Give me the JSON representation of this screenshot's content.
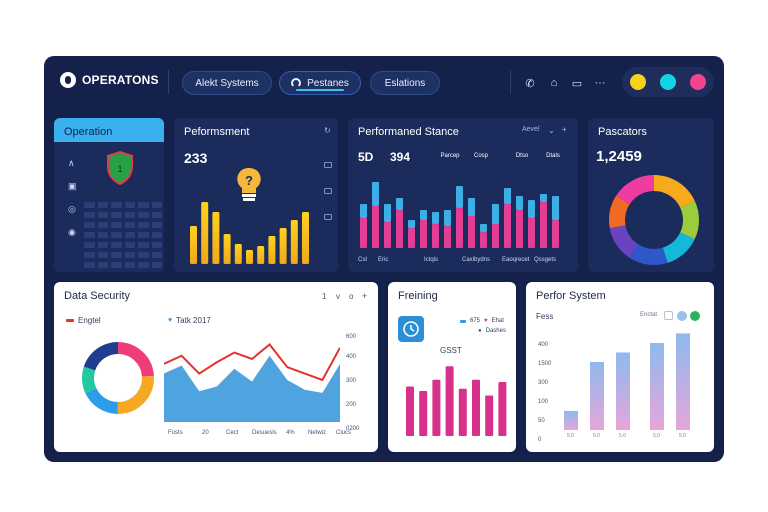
{
  "header": {
    "brand": "OPERATONS",
    "tabs": [
      {
        "label": "Alekt Systems"
      },
      {
        "label": "Pestanes"
      },
      {
        "label": "Eslations"
      }
    ],
    "toolbar_icons": [
      "phone-icon",
      "home-icon",
      "screen-icon",
      "more-icon"
    ],
    "status_dots": [
      {
        "icon": "warning-icon",
        "color": "#f6d21b"
      },
      {
        "icon": "cyan-dot-icon",
        "color": "#12d3e6"
      },
      {
        "icon": "alert-icon",
        "color": "#f2458f"
      }
    ]
  },
  "panels": {
    "operation": {
      "title": "Operation",
      "nav_icons": [
        "chevron-icon",
        "image-icon",
        "shield-icon",
        "globe-icon"
      ],
      "grid_rows": 7
    },
    "performance": {
      "title": "Peformsment",
      "value": "233"
    },
    "stance": {
      "title": "Performaned Stance",
      "filter": "Aevel",
      "value_a": "5D",
      "value_b": "394",
      "tags": [
        {
          "label": "Parcep",
          "color": "#f0553b"
        },
        {
          "label": "Cosp",
          "color": "#f0553b"
        },
        {
          "label": "Dtso",
          "color": "#1fa556"
        },
        {
          "label": "Dtals",
          "color": "#1fa556"
        }
      ],
      "x_labels": [
        "Cst",
        "Eric",
        "Ictqis",
        "Caxibydns",
        "Eaoqrecet",
        "Qssgets"
      ]
    },
    "pascators": {
      "title": "Pascators",
      "value": "1,2459"
    },
    "security": {
      "title": "Data Security",
      "controls": [
        "1",
        "v",
        "o",
        "+"
      ],
      "legend_a": "Engtel",
      "legend_b": "Tatk 2017",
      "y_labels": [
        "600",
        "400",
        "300",
        "200",
        "0200"
      ],
      "x_labels": [
        "Fusts",
        "20",
        "Cect",
        "Desuesls",
        "4%",
        "Netwiz",
        "Clucs"
      ]
    },
    "fretning": {
      "title": "Freining",
      "legend_a": "675",
      "legend_b": "Ehat",
      "legend_c": "Dashes",
      "value": "GSST"
    },
    "system": {
      "title": "Perfor System",
      "subtitle": "Fess",
      "filter": "Enctat",
      "y_labels": [
        "400",
        "1500",
        "300",
        "100",
        "50",
        "0"
      ]
    }
  },
  "chart_data": [
    {
      "type": "bar",
      "title": "Peformsment",
      "series": [
        {
          "values": [
            38,
            62,
            52,
            30,
            20,
            14,
            18,
            28,
            36,
            44,
            52
          ]
        }
      ]
    },
    {
      "type": "bar",
      "title": "Performaned Stance",
      "series": [
        {
          "color": "#e43d95",
          "values": [
            30,
            42,
            26,
            38,
            20,
            28,
            24,
            22,
            40,
            32,
            16,
            24,
            44,
            38,
            30,
            46,
            28
          ]
        },
        {
          "color": "#3dafe6",
          "values": [
            14,
            24,
            18,
            12,
            8,
            10,
            12,
            16,
            22,
            18,
            8,
            20,
            16,
            14,
            18,
            8,
            24
          ]
        }
      ]
    },
    {
      "type": "pie",
      "title": "Pascators",
      "values": [
        18,
        14,
        13,
        14,
        13,
        12,
        16
      ],
      "colors": [
        "#f6ab1b",
        "#9ccb3d",
        "#14b8d8",
        "#2e57c9",
        "#6a44c0",
        "#f06a24",
        "#ef3ca1"
      ]
    },
    {
      "type": "pie",
      "title": "Data Security",
      "values": [
        24,
        26,
        18,
        12,
        20
      ],
      "colors": [
        "#ef3c7b",
        "#f6a823",
        "#2d9cea",
        "#23c8a0",
        "#1f3c8f"
      ]
    },
    {
      "type": "area",
      "title": "Data Security",
      "series": [
        {
          "name": "Engtel",
          "color": "#e2332f",
          "values": [
            180,
            205,
            150,
            185,
            215,
            195,
            240,
            170,
            150,
            130,
            230
          ]
        },
        {
          "name": "Tatk 2017",
          "color": "#4fa3de",
          "values": [
            150,
            175,
            95,
            110,
            165,
            125,
            205,
            130,
            100,
            90,
            180
          ]
        }
      ]
    },
    {
      "type": "bar",
      "title": "Freining",
      "series": [
        {
          "color": "#d6328b",
          "values": [
            44,
            40,
            50,
            62,
            42,
            50,
            36,
            48
          ]
        }
      ]
    },
    {
      "type": "bar",
      "title": "Perfor System",
      "series": [
        {
          "values": [
            56,
            200,
            228,
            256,
            284
          ]
        }
      ]
    }
  ]
}
